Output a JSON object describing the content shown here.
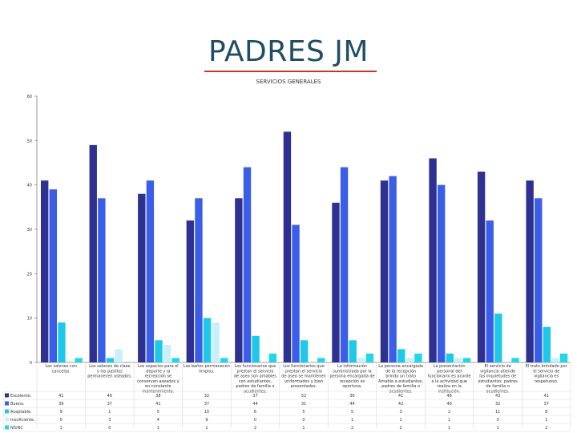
{
  "slide": {
    "title": "PADRES JM"
  },
  "colors": {
    "axis": "#808080",
    "grid": "#d9d9d9",
    "text": "#333333"
  },
  "chart_data": {
    "type": "bar",
    "title": "SERVICIOS GENERALES",
    "xlabel": "",
    "ylabel": "",
    "ylim": [
      0,
      60
    ],
    "yticks": [
      0,
      10,
      20,
      30,
      40,
      50,
      60
    ],
    "grid": false,
    "legend": "left-of-table",
    "categories": [
      "Los salones con cancelas.",
      "Los salones de clase y los pasillos permanecen aseados.",
      "Los espacios para el deporte y la recreación se conservan aseados y en constante mantenimiento.",
      "Los baños permanecen limpios.",
      "Los funcionarios que prestan el servicio de aseo son amables con estudiantes, padres de familia o acudientes.",
      "Los funcionarios que prestan el servicio de aseo se mantienen uniformados y bien presentados.",
      "La información suministrada por la persona encargada de recepción es oportuna.",
      "La persona encargada de la recepción brinda un trato Amable a estudiantes, padres de familia o acudientes.",
      "La presentación personal del funcionario es acorde a la actividad que realiza en la institución.",
      "El servicio de vigilancia atiende las inquietudes de estudiantes, padres de familia o acudientes.",
      "El trato brindado por el servicio de vigilancia es respetuoso."
    ],
    "series": [
      {
        "name": "Excelente.",
        "color": "#2e3192",
        "values": [
          41,
          49,
          38,
          32,
          37,
          52,
          36,
          41,
          46,
          43,
          41
        ]
      },
      {
        "name": "Bueno.",
        "color": "#3b5ee8",
        "values": [
          39,
          37,
          41,
          37,
          44,
          31,
          44,
          42,
          40,
          32,
          37
        ]
      },
      {
        "name": "Aceptable.",
        "color": "#1ec8e8",
        "values": [
          9,
          1,
          5,
          10,
          6,
          5,
          5,
          3,
          2,
          11,
          8
        ]
      },
      {
        "name": "Insuficiente.",
        "color": "#c8f0fa",
        "values": [
          0,
          3,
          4,
          9,
          0,
          0,
          1,
          1,
          1,
          0,
          1
        ]
      },
      {
        "name": "NS/NC",
        "color": "#22d6e8",
        "values": [
          1,
          0,
          1,
          1,
          2,
          1,
          2,
          2,
          1,
          1,
          2
        ]
      }
    ]
  }
}
